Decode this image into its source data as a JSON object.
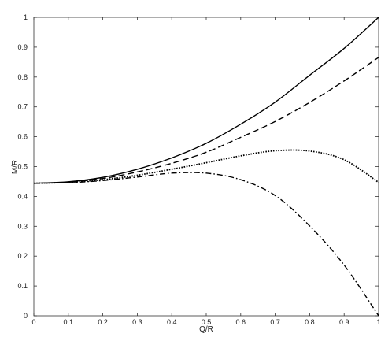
{
  "chart_data": {
    "type": "line",
    "xlabel": "Q/R",
    "ylabel": "M/R",
    "xlim": [
      0,
      1
    ],
    "ylim": [
      0,
      1
    ],
    "grid": false,
    "legend": "none",
    "x_ticks": [
      "0",
      "0.1",
      "0.2",
      "0.3",
      "0.4",
      "0.5",
      "0.6",
      "0.7",
      "0.8",
      "0.9",
      "1"
    ],
    "y_ticks": [
      "0",
      "0.1",
      "0.2",
      "0.3",
      "0.4",
      "0.5",
      "0.6",
      "0.7",
      "0.8",
      "0.9",
      "1"
    ],
    "x": [
      0,
      0.1,
      0.2,
      0.3,
      0.4,
      0.5,
      0.6,
      0.7,
      0.8,
      0.9,
      1.0
    ],
    "series": [
      {
        "style": "solid",
        "values": [
          0.444,
          0.449,
          0.464,
          0.491,
          0.529,
          0.578,
          0.642,
          0.716,
          0.806,
          0.896,
          1.0
        ]
      },
      {
        "style": "dashed",
        "values": [
          0.444,
          0.448,
          0.46,
          0.482,
          0.511,
          0.548,
          0.598,
          0.651,
          0.715,
          0.787,
          0.866
        ]
      },
      {
        "style": "dotted",
        "values": [
          0.444,
          0.447,
          0.456,
          0.471,
          0.491,
          0.513,
          0.536,
          0.553,
          0.552,
          0.523,
          0.447
        ]
      },
      {
        "style": "dashdot",
        "values": [
          0.444,
          0.446,
          0.453,
          0.465,
          0.478,
          0.478,
          0.456,
          0.403,
          0.301,
          0.17,
          0.0
        ]
      }
    ]
  }
}
